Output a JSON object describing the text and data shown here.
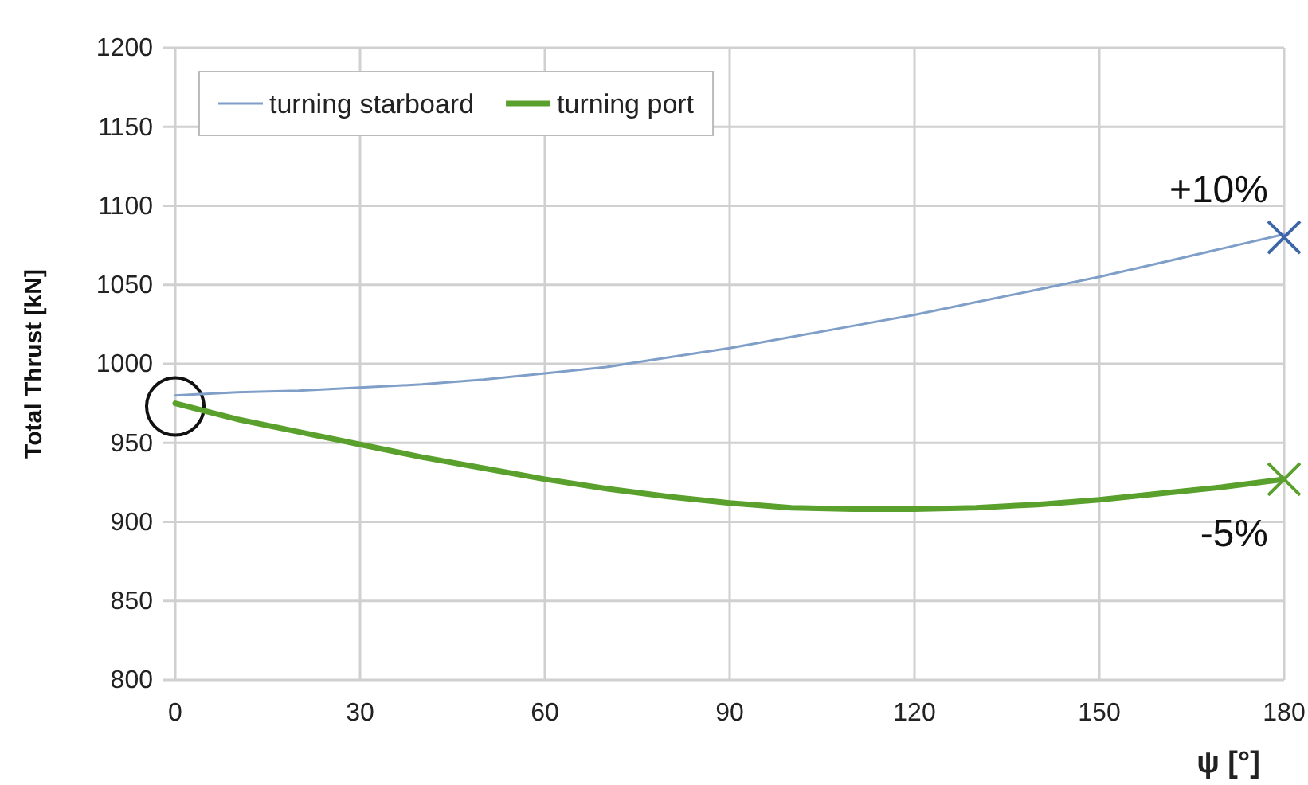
{
  "chart_data": {
    "type": "line",
    "xlabel": "ψ [°]",
    "ylabel": "Total Thrust [kN]",
    "x": [
      0,
      10,
      20,
      30,
      40,
      50,
      60,
      70,
      80,
      90,
      100,
      110,
      120,
      130,
      140,
      150,
      160,
      170,
      180
    ],
    "xlim": [
      0,
      180
    ],
    "xticks": [
      0,
      30,
      60,
      90,
      120,
      150,
      180
    ],
    "ylim": [
      800,
      1200
    ],
    "yticks": [
      800,
      850,
      900,
      950,
      1000,
      1050,
      1100,
      1150,
      1200
    ],
    "grid": true,
    "legend": "top left",
    "marker": "none",
    "series": [
      {
        "name": "turning starboard",
        "color": "#7f9fc8",
        "values": [
          980,
          982,
          983,
          985,
          987,
          990,
          994,
          998,
          1004,
          1010,
          1017,
          1024,
          1031,
          1039,
          1047,
          1055,
          1064,
          1073,
          1082
        ]
      },
      {
        "name": "turning port",
        "color": "#5aa02c",
        "values": [
          975,
          965,
          957,
          949,
          941,
          934,
          927,
          921,
          916,
          912,
          909,
          908,
          908,
          909,
          911,
          914,
          918,
          922,
          927
        ]
      },
      {
        "type": "scatter",
        "marker": "cross",
        "color": "#3d66a8",
        "x": [
          180
        ],
        "values": [
          1080
        ]
      },
      {
        "type": "scatter",
        "marker": "cross",
        "color": "#5aa02c",
        "x": [
          180
        ],
        "values": [
          927
        ]
      }
    ],
    "annotations": [
      {
        "text": "+10%",
        "x": 180,
        "y": 1080
      },
      {
        "text": "-5%",
        "x": 180,
        "y": 927
      }
    ]
  }
}
